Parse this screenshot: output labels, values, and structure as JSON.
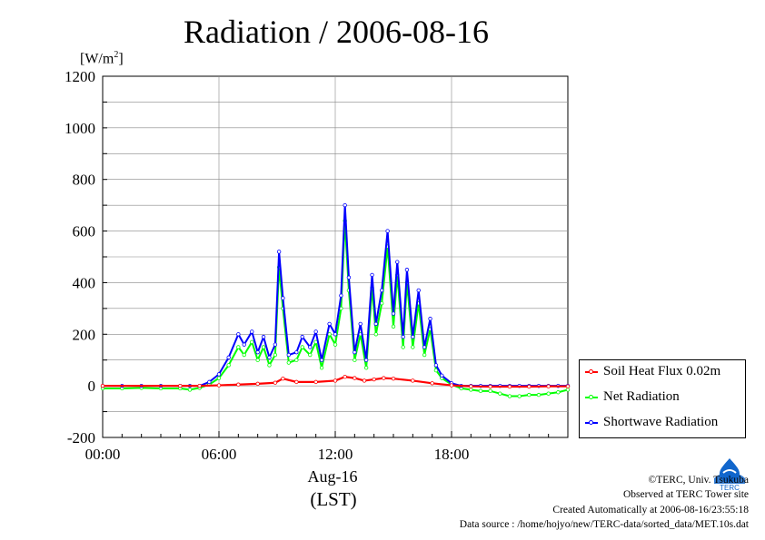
{
  "header": {
    "title": "Radiation / 2006-08-16",
    "y_unit_main": "[W/m",
    "y_unit_sup": "2",
    "y_unit_end": "]"
  },
  "xaxis": {
    "date_label": "Aug-16",
    "tz_label": "(LST)"
  },
  "legend": {
    "items": [
      {
        "label": "Soil Heat Flux 0.02m",
        "color": "#ff0000"
      },
      {
        "label": "Net Radiation",
        "color": "#00ff00"
      },
      {
        "label": "Shortwave Radiation",
        "color": "#0000ff"
      }
    ]
  },
  "credits": {
    "line1": "©TERC, Univ. Tsukuba",
    "line2": "Observed at TERC Tower site",
    "line3": "Created Automatically at 2006-08-16/23:55:18",
    "line4": "Data source : /home/hojyo/new/TERC-data/sorted_data/MET.10s.dat"
  },
  "logo": {
    "text": "TERC",
    "color": "#1166cc"
  },
  "chart_data": {
    "type": "line",
    "x_unit": "hour (LST)",
    "xlim": [
      0,
      24
    ],
    "ylim": [
      -200,
      1200
    ],
    "yticks": [
      -200,
      0,
      200,
      400,
      600,
      800,
      1000,
      1200
    ],
    "xticks": [
      0,
      6,
      12,
      18
    ],
    "xtick_labels": [
      "00:00",
      "06:00",
      "12:00",
      "18:00"
    ],
    "grid": true,
    "legend_position": "right",
    "series": [
      {
        "name": "Soil Heat Flux 0.02m",
        "color": "#ff0000",
        "x": [
          0,
          4,
          5,
          6,
          7,
          8,
          8.9,
          9.3,
          10,
          11,
          12,
          12.5,
          13,
          13.5,
          14,
          14.5,
          15,
          16,
          17,
          18,
          19,
          20,
          21,
          22,
          23,
          24
        ],
        "y": [
          0,
          0,
          0,
          2,
          5,
          8,
          12,
          28,
          15,
          15,
          20,
          35,
          30,
          20,
          25,
          30,
          28,
          20,
          10,
          2,
          -2,
          -3,
          -3,
          -3,
          -2,
          -2
        ]
      },
      {
        "name": "Net Radiation",
        "color": "#00ff00",
        "x": [
          0,
          1,
          2,
          3,
          4,
          4.5,
          5,
          5.5,
          6,
          6.5,
          7,
          7.3,
          7.7,
          8,
          8.3,
          8.6,
          8.9,
          9.1,
          9.3,
          9.6,
          10,
          10.3,
          10.7,
          11,
          11.3,
          11.7,
          12,
          12.3,
          12.5,
          12.7,
          13,
          13.3,
          13.6,
          13.9,
          14.1,
          14.4,
          14.7,
          15,
          15.2,
          15.5,
          15.7,
          16,
          16.3,
          16.6,
          16.9,
          17.2,
          17.5,
          18,
          18.5,
          19,
          19.5,
          20,
          20.5,
          21,
          21.5,
          22,
          22.5,
          23,
          23.5,
          24
        ],
        "y": [
          -10,
          -10,
          -8,
          -10,
          -10,
          -15,
          -8,
          5,
          30,
          80,
          150,
          120,
          170,
          100,
          150,
          80,
          120,
          460,
          300,
          90,
          100,
          150,
          120,
          170,
          70,
          200,
          160,
          300,
          640,
          370,
          100,
          200,
          70,
          380,
          200,
          320,
          540,
          230,
          430,
          150,
          400,
          150,
          320,
          120,
          220,
          60,
          30,
          5,
          -10,
          -15,
          -20,
          -20,
          -30,
          -40,
          -40,
          -35,
          -35,
          -30,
          -25,
          -15
        ]
      },
      {
        "name": "Shortwave Radiation",
        "color": "#0000ff",
        "x": [
          0,
          1,
          2,
          3,
          4,
          4.5,
          5,
          5.5,
          6,
          6.5,
          7,
          7.3,
          7.7,
          8,
          8.3,
          8.6,
          8.9,
          9.1,
          9.3,
          9.6,
          10,
          10.3,
          10.7,
          11,
          11.3,
          11.7,
          12,
          12.3,
          12.5,
          12.7,
          13,
          13.3,
          13.6,
          13.9,
          14.1,
          14.4,
          14.7,
          15,
          15.2,
          15.5,
          15.7,
          16,
          16.3,
          16.6,
          16.9,
          17.2,
          17.5,
          18,
          18.5,
          19,
          19.5,
          20,
          20.5,
          21,
          21.5,
          22,
          22.5,
          23,
          23.5,
          24
        ],
        "y": [
          0,
          0,
          0,
          0,
          0,
          0,
          0,
          15,
          45,
          110,
          200,
          160,
          210,
          130,
          190,
          110,
          160,
          520,
          340,
          120,
          130,
          190,
          150,
          210,
          100,
          240,
          200,
          350,
          700,
          420,
          130,
          240,
          100,
          430,
          240,
          370,
          600,
          280,
          480,
          190,
          450,
          190,
          370,
          150,
          260,
          80,
          40,
          10,
          0,
          0,
          0,
          0,
          0,
          0,
          0,
          0,
          0,
          0,
          0,
          0
        ]
      }
    ]
  }
}
